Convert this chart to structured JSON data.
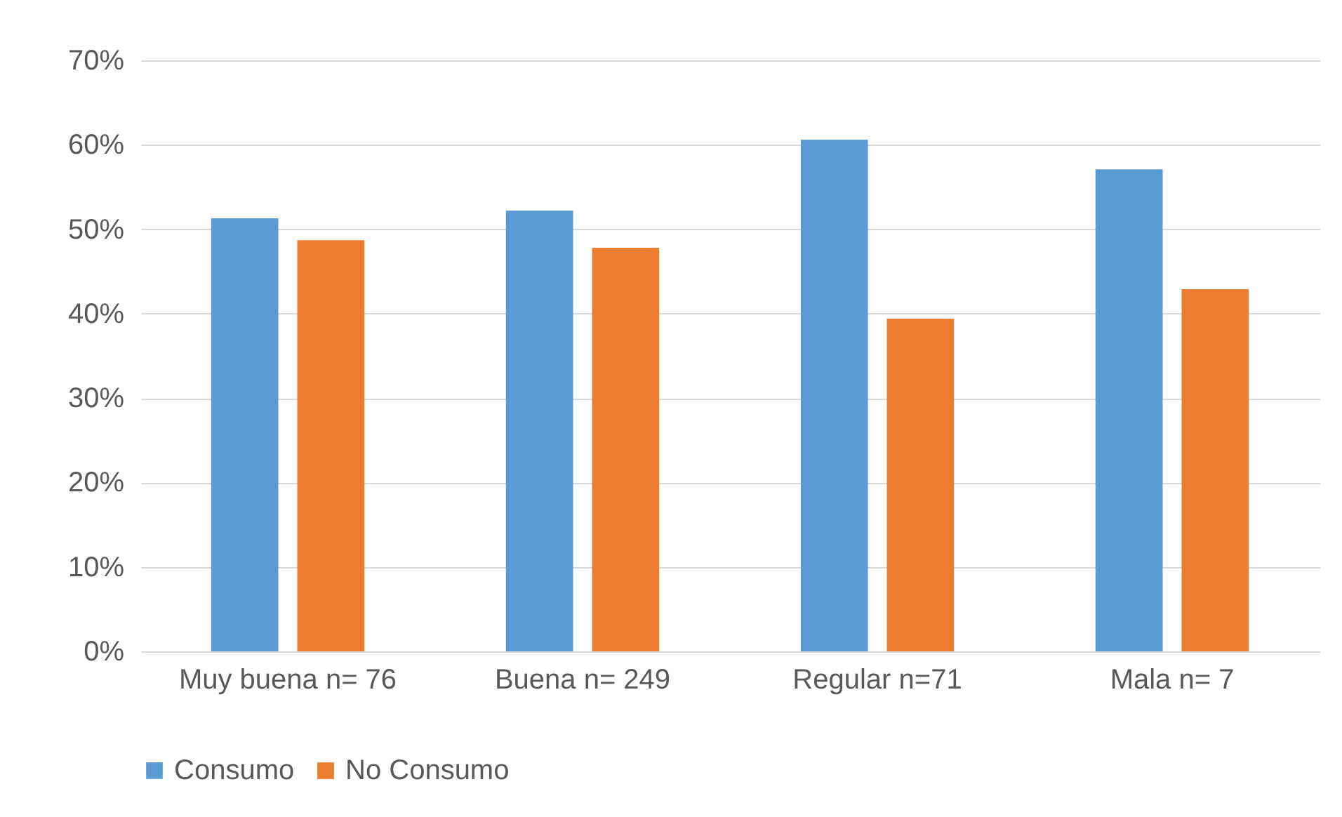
{
  "chart_data": {
    "type": "bar",
    "categories": [
      "Muy buena n= 76",
      "Buena n= 249",
      "Regular n=71",
      "Mala n= 7"
    ],
    "series": [
      {
        "name": "Consumo",
        "color": "#5b9bd5",
        "values": [
          51.3,
          52.2,
          60.6,
          57.1
        ]
      },
      {
        "name": "No Consumo",
        "color": "#ed7d31",
        "values": [
          48.7,
          47.8,
          39.4,
          42.9
        ]
      }
    ],
    "ylim": [
      0,
      70
    ],
    "yticks": [
      {
        "value": 0,
        "label": "0%"
      },
      {
        "value": 10,
        "label": "10%"
      },
      {
        "value": 20,
        "label": "20%"
      },
      {
        "value": 30,
        "label": "30%"
      },
      {
        "value": 40,
        "label": "40%"
      },
      {
        "value": 50,
        "label": "50%"
      },
      {
        "value": 60,
        "label": "60%"
      },
      {
        "value": 70,
        "label": "70%"
      }
    ],
    "grid": "y",
    "legend": "bottom"
  }
}
